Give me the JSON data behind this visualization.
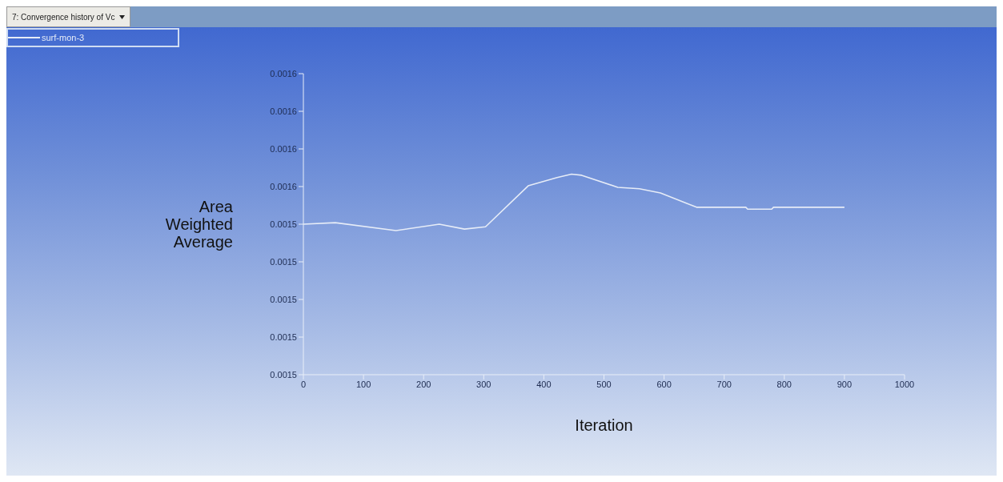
{
  "chart_data": {
    "type": "line",
    "title": "7: Convergence history of Vc",
    "xlabel": "Iteration",
    "ylabel": "Area Weighted Average",
    "x": [
      0,
      53,
      154,
      226,
      268,
      303,
      374,
      422,
      446,
      463,
      523,
      559,
      594,
      654,
      736,
      739,
      779,
      782,
      900
    ],
    "series": [
      {
        "name": "surf-mon-3",
        "color": "#e6ecf7",
        "values": [
          0.00154,
          0.0015404,
          0.0015383,
          0.00154,
          0.0015387,
          0.0015393,
          0.0015502,
          0.0015524,
          0.0015533,
          0.001553,
          0.0015498,
          0.0015494,
          0.0015483,
          0.0015445,
          0.0015445,
          0.001544,
          0.001544,
          0.0015445,
          0.0015445
        ]
      }
    ],
    "xlim": [
      0,
      1000
    ],
    "xticks": [
      0,
      100,
      200,
      300,
      400,
      500,
      600,
      700,
      800,
      900,
      1000
    ],
    "ylim": [
      0.0015,
      0.00158
    ],
    "yticks": [
      {
        "value": 0.0015,
        "label": "0.0015"
      },
      {
        "value": 0.00151,
        "label": "0.0015"
      },
      {
        "value": 0.00152,
        "label": "0.0015"
      },
      {
        "value": 0.00153,
        "label": "0.0015"
      },
      {
        "value": 0.00154,
        "label": "0.0015"
      },
      {
        "value": 0.00155,
        "label": "0.0016"
      },
      {
        "value": 0.00156,
        "label": "0.0016"
      },
      {
        "value": 0.00157,
        "label": "0.0016"
      },
      {
        "value": 0.00158,
        "label": "0.0016"
      }
    ],
    "grid": false,
    "legend": "top left",
    "marker": "none",
    "line_style": "solid"
  }
}
